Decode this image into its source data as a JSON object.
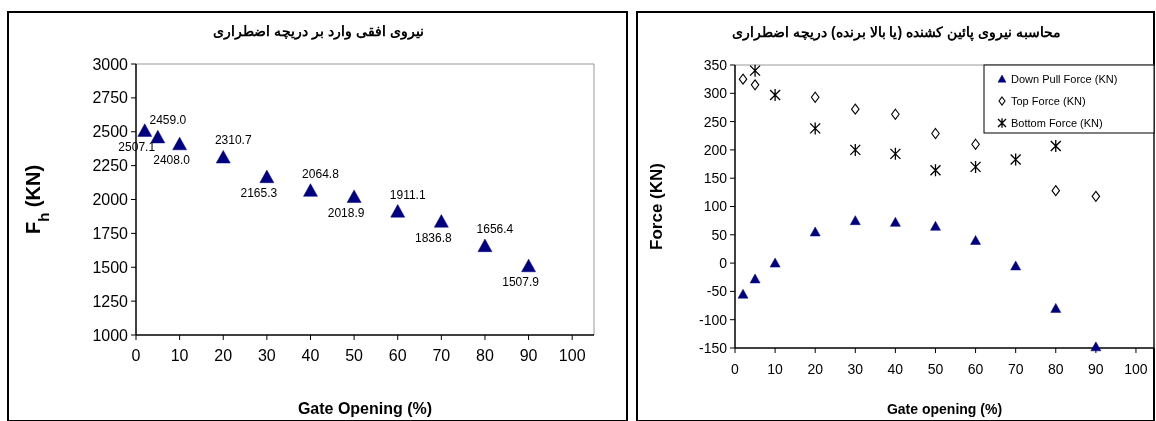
{
  "chart_data": [
    {
      "type": "scatter",
      "title": "نیروی افقی وارد بر دریچه اضطراری",
      "xlabel": "Gate Opening (%)",
      "ylabel": "F$_{h}$ (KN)",
      "x": [
        2,
        5,
        10,
        20,
        30,
        40,
        50,
        60,
        70,
        80,
        90
      ],
      "values": [
        2507.1,
        2459.0,
        2408.0,
        2310.7,
        2165.3,
        2064.8,
        2018.9,
        1911.1,
        1836.8,
        1656.4,
        1507.9
      ],
      "value_labels": [
        "2507.1",
        "2459.0",
        "2408.0",
        "2310.7",
        "2165.3",
        "2064.8",
        "2018.9",
        "1911.1",
        "1836.8",
        "1656.4",
        "1507.9"
      ],
      "color": "#000080",
      "marker": "triangle",
      "xlim": [
        0,
        105
      ],
      "xticks": [
        0,
        10,
        20,
        30,
        40,
        50,
        60,
        70,
        80,
        90,
        100
      ],
      "ylim": [
        1000,
        3000
      ],
      "yticks": [
        1000,
        1250,
        1500,
        1750,
        2000,
        2250,
        2500,
        2750,
        3000
      ]
    },
    {
      "type": "scatter",
      "title": "محاسبه نیروی پائین کشنده (یا بالا برنده) دریچه اضطراری",
      "xlabel": "Gate opening (%)",
      "ylabel": "Force (KN)",
      "x": [
        2,
        5,
        10,
        20,
        30,
        40,
        50,
        60,
        70,
        80,
        90
      ],
      "series": [
        {
          "name": "Down Pull Force (KN)",
          "color": "#000080",
          "marker": "triangle",
          "values": [
            -55,
            -28,
            0,
            55,
            75,
            72,
            65,
            40,
            -5,
            -80,
            -148
          ]
        },
        {
          "name": "Top Force (KN)",
          "color": "#000000",
          "marker": "diamond",
          "values": [
            325,
            315,
            null,
            293,
            272,
            263,
            229,
            210,
            null,
            128,
            118
          ]
        },
        {
          "name": "Bottom Force (KN)",
          "color": "#000000",
          "marker": "cross",
          "values": [
            null,
            340,
            297,
            238,
            200,
            193,
            164,
            170,
            183,
            207,
            null
          ]
        }
      ],
      "legend": "top right",
      "xlim": [
        0,
        104.5
      ],
      "xticks": [
        0,
        10,
        20,
        30,
        40,
        50,
        60,
        70,
        80,
        90,
        100
      ],
      "ylim": [
        -150,
        350
      ],
      "yticks": [
        -150,
        -100,
        -50,
        0,
        50,
        100,
        150,
        200,
        250,
        300,
        350
      ]
    }
  ]
}
